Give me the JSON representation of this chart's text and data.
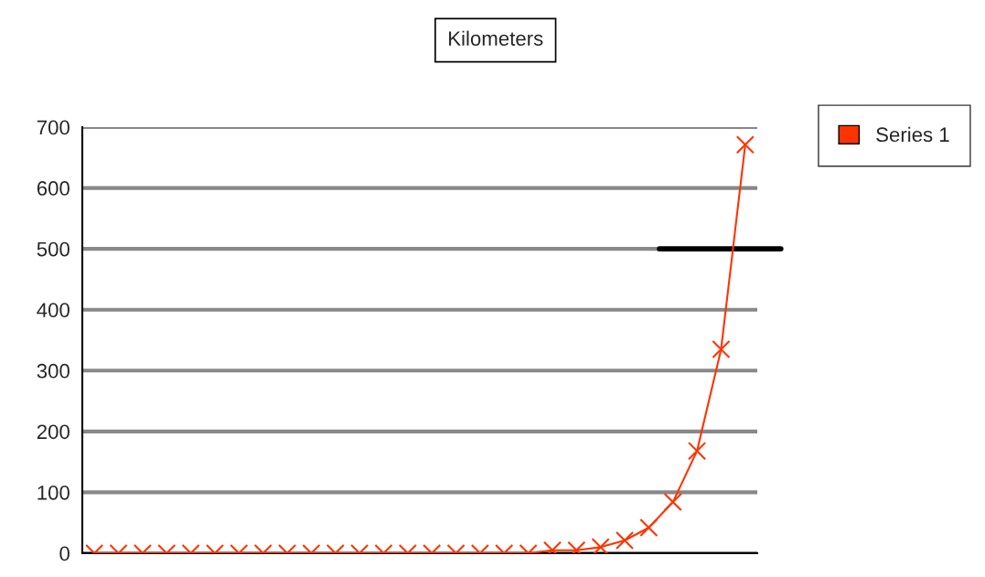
{
  "chart_data": {
    "type": "line",
    "title": "Kilometers",
    "categories": [
      null,
      null,
      null,
      null,
      null,
      null,
      null,
      null,
      null,
      null,
      null,
      null,
      null,
      null,
      null,
      null,
      null,
      null,
      null,
      null,
      null,
      null,
      null,
      null,
      null,
      null,
      null,
      null
    ],
    "series": [
      {
        "name": "Series 1",
        "color": "#ff3300",
        "values": [
          0,
          0,
          0,
          0,
          0,
          0,
          0,
          0,
          0,
          0,
          0,
          0,
          0,
          0,
          0,
          0,
          0,
          0,
          0,
          5,
          5,
          10,
          21,
          42,
          84,
          168,
          335,
          671
        ]
      }
    ],
    "ylim": [
      0,
      700
    ],
    "yticks": [
      0,
      100,
      200,
      300,
      400,
      500,
      600,
      700
    ],
    "tick_labels": "y",
    "grid": "y",
    "legend": "top right",
    "marker": "cross",
    "line_style": "solid",
    "ref_lines": [
      {
        "axis": "y",
        "value": 500,
        "color": "#000000",
        "line_style": "solid"
      }
    ]
  }
}
